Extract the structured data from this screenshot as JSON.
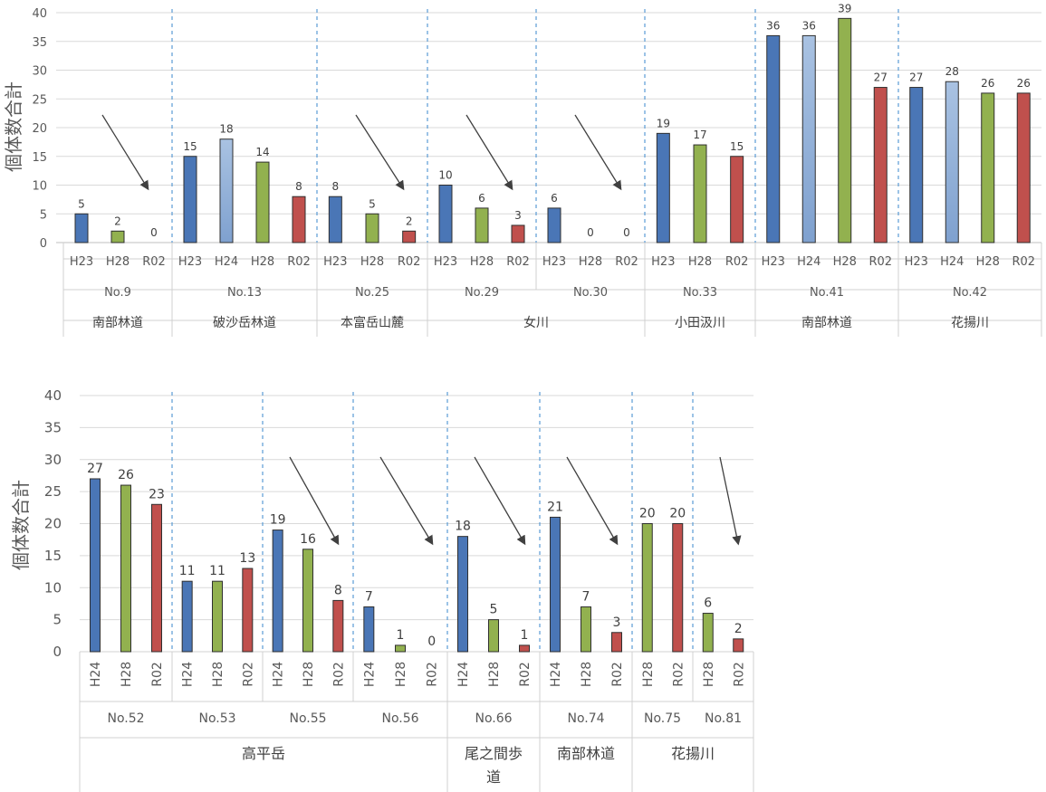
{
  "colors": {
    "H23": "#4a76b6",
    "H24_top": "#94b2d9",
    "H24_bottom": "#4a76b6",
    "H28": "#92b14f",
    "R02": "#c0504d",
    "grid": "#d9d9d9",
    "divider": "#5b9bd5",
    "arrow": "#404040"
  },
  "chart_data": [
    {
      "type": "bar",
      "ylabel": "個体数合計",
      "ylim": [
        0,
        40
      ],
      "yticks": [
        0,
        5,
        10,
        15,
        20,
        25,
        30,
        35,
        40
      ],
      "groups": [
        {
          "site": "No.9",
          "area": "南部林道",
          "categories": [
            "H23",
            "H28",
            "R02"
          ],
          "values": [
            5,
            2,
            0
          ],
          "trend_arrow": true
        },
        {
          "site": "No.13",
          "area": "破沙岳林道",
          "categories": [
            "H23",
            "H24",
            "H28",
            "R02"
          ],
          "values": [
            15,
            18,
            14,
            8
          ],
          "trend_arrow": false
        },
        {
          "site": "No.25",
          "area": "本富岳山麓",
          "categories": [
            "H23",
            "H28",
            "R02"
          ],
          "values": [
            8,
            5,
            2
          ],
          "trend_arrow": true
        },
        {
          "site": "No.29",
          "area": "女川",
          "categories": [
            "H23",
            "H28",
            "R02"
          ],
          "values": [
            10,
            6,
            3
          ],
          "trend_arrow": true
        },
        {
          "site": "No.30",
          "area": "女川",
          "categories": [
            "H23",
            "H28",
            "R02"
          ],
          "values": [
            6,
            0,
            0
          ],
          "trend_arrow": true
        },
        {
          "site": "No.33",
          "area": "小田汲川",
          "categories": [
            "H23",
            "H28",
            "R02"
          ],
          "values": [
            19,
            17,
            15
          ],
          "trend_arrow": false
        },
        {
          "site": "No.41",
          "area": "南部林道",
          "categories": [
            "H23",
            "H24",
            "H28",
            "R02"
          ],
          "values": [
            36,
            36,
            39,
            27
          ],
          "trend_arrow": false
        },
        {
          "site": "No.42",
          "area": "花揚川",
          "categories": [
            "H23",
            "H24",
            "H28",
            "R02"
          ],
          "values": [
            27,
            28,
            26,
            26
          ],
          "trend_arrow": false
        }
      ],
      "area_spans": [
        {
          "label": "南部林道",
          "groups": [
            "No.9"
          ]
        },
        {
          "label": "破沙岳林道",
          "groups": [
            "No.13"
          ]
        },
        {
          "label": "本富岳山麓",
          "groups": [
            "No.25"
          ]
        },
        {
          "label": "女川",
          "groups": [
            "No.29",
            "No.30"
          ]
        },
        {
          "label": "小田汲川",
          "groups": [
            "No.33"
          ]
        },
        {
          "label": "南部林道",
          "groups": [
            "No.41"
          ]
        },
        {
          "label": "花揚川",
          "groups": [
            "No.42"
          ]
        }
      ]
    },
    {
      "type": "bar",
      "ylabel": "個体数合計",
      "ylim": [
        0,
        40
      ],
      "yticks": [
        0,
        5,
        10,
        15,
        20,
        25,
        30,
        35,
        40
      ],
      "groups": [
        {
          "site": "No.52",
          "categories": [
            "H24",
            "H28",
            "R02"
          ],
          "values": [
            27,
            26,
            23
          ],
          "trend_arrow": false
        },
        {
          "site": "No.53",
          "categories": [
            "H24",
            "H28",
            "R02"
          ],
          "values": [
            11,
            11,
            13
          ],
          "trend_arrow": false
        },
        {
          "site": "No.55",
          "categories": [
            "H24",
            "H28",
            "R02"
          ],
          "values": [
            19,
            16,
            8
          ],
          "trend_arrow": true
        },
        {
          "site": "No.56",
          "categories": [
            "H24",
            "H28",
            "R02"
          ],
          "values": [
            7,
            1,
            0
          ],
          "trend_arrow": true
        },
        {
          "site": "No.66",
          "categories": [
            "H24",
            "H28",
            "R02"
          ],
          "values": [
            18,
            5,
            1
          ],
          "trend_arrow": true
        },
        {
          "site": "No.74",
          "categories": [
            "H24",
            "H28",
            "R02"
          ],
          "values": [
            21,
            7,
            3
          ],
          "trend_arrow": true
        },
        {
          "site": "No.75",
          "categories": [
            "H28",
            "R02"
          ],
          "values": [
            20,
            20
          ],
          "trend_arrow": false
        },
        {
          "site": "No.81",
          "categories": [
            "H28",
            "R02"
          ],
          "values": [
            6,
            2
          ],
          "trend_arrow": true
        }
      ],
      "area_spans": [
        {
          "label": "高平岳",
          "groups": [
            "No.52",
            "No.53",
            "No.55",
            "No.56"
          ]
        },
        {
          "label": "尾之間歩道",
          "groups": [
            "No.66"
          ]
        },
        {
          "label": "南部林道",
          "groups": [
            "No.74"
          ]
        },
        {
          "label": "花揚川",
          "groups": [
            "No.75",
            "No.81"
          ]
        }
      ]
    }
  ]
}
